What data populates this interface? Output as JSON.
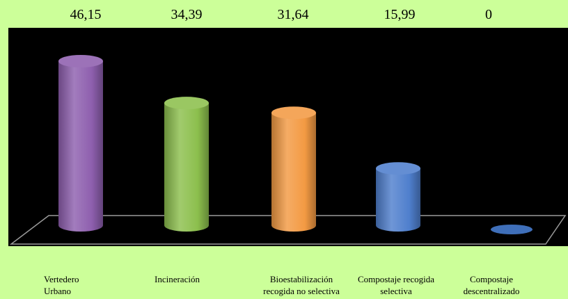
{
  "chart_data": {
    "type": "bar",
    "style": "3d-cylinder",
    "categories": [
      [
        "Vertedero",
        "Urbano"
      ],
      [
        "Incineración"
      ],
      [
        "Bioestabilización",
        "recogida no selectiva"
      ],
      [
        "Compostaje recogida",
        "selectiva"
      ],
      [
        "Compostaje",
        "descentralizado"
      ]
    ],
    "value_labels": [
      "46,15",
      "34,39",
      "31,64",
      "15,99",
      "0"
    ],
    "values": [
      46.15,
      34.39,
      31.64,
      15.99,
      0
    ],
    "colors": [
      "#8e5fae",
      "#8cbf4d",
      "#f39a43",
      "#4f7fcd",
      "#3f6fb9"
    ],
    "plot_background": "#000000",
    "page_background": "#ccff99",
    "grid": false,
    "legend": false
  }
}
